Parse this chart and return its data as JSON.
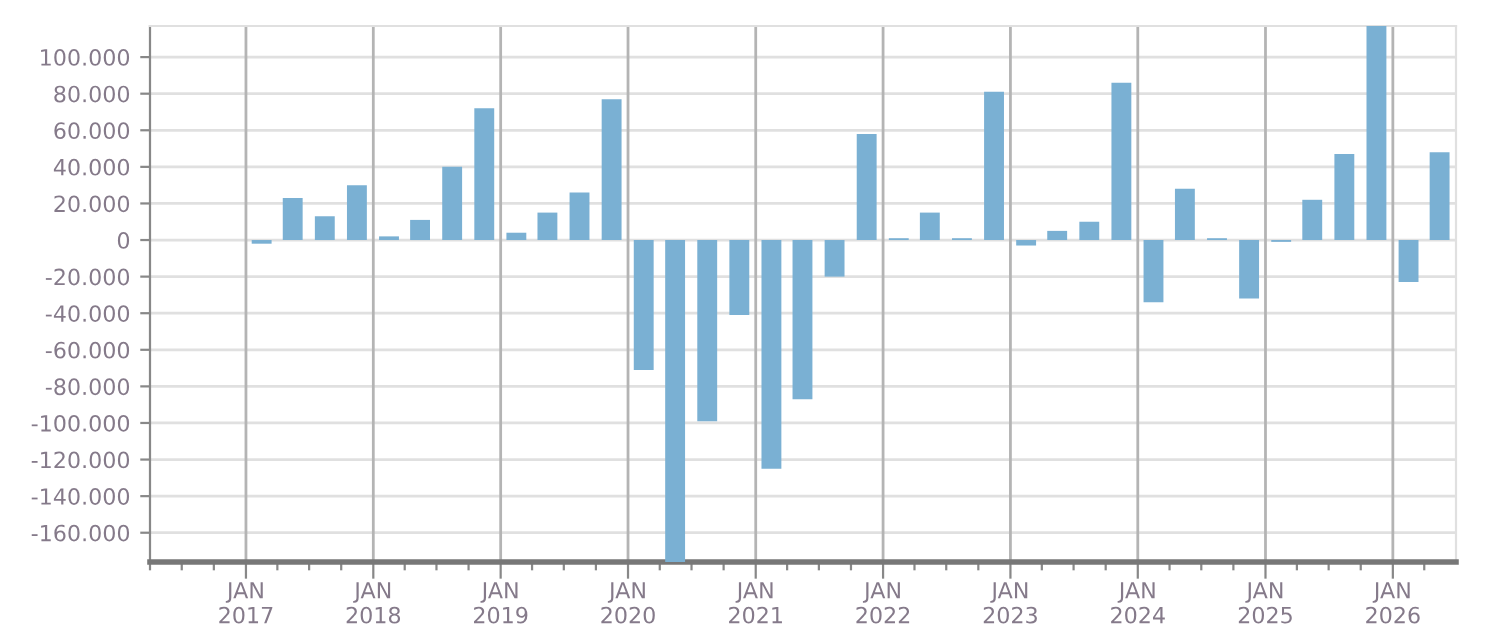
{
  "chart_data": {
    "type": "bar",
    "color": "#7ab0d3",
    "grid": true,
    "x": [
      "2017-02-15",
      "2017-05-15",
      "2017-08-15",
      "2017-11-15",
      "2018-02-15",
      "2018-05-15",
      "2018-08-15",
      "2018-11-15",
      "2019-02-15",
      "2019-05-15",
      "2019-08-15",
      "2019-11-15",
      "2020-02-15",
      "2020-05-15",
      "2020-08-15",
      "2020-11-15",
      "2021-02-15",
      "2021-05-15",
      "2021-08-15",
      "2021-11-15",
      "2022-02-15",
      "2022-05-15",
      "2022-08-15",
      "2022-11-15",
      "2023-02-15",
      "2023-05-15",
      "2023-08-15",
      "2023-11-15",
      "2024-02-15",
      "2024-05-15",
      "2024-08-15",
      "2024-11-15",
      "2025-02-15",
      "2025-05-15",
      "2025-08-15",
      "2025-11-15",
      "2026-02-15",
      "2026-05-15"
    ],
    "values": [
      -2000,
      23000,
      13000,
      30000,
      2000,
      11000,
      40000,
      72000,
      4000,
      15000,
      26000,
      77000,
      -71000,
      -176000,
      -99000,
      -41000,
      -125000,
      -87000,
      -20000,
      58000,
      1000,
      15000,
      1000,
      81000,
      -3000,
      5000,
      10000,
      86000,
      -34000,
      28000,
      1000,
      -32000,
      -1000,
      22000,
      47000,
      117000,
      -23000,
      48000
    ],
    "xlim": [
      "2016-04-01",
      "2026-07-01"
    ],
    "xticks": [
      {
        "value": "2016-04-01",
        "label": null
      },
      {
        "value": "2016-07-01",
        "label": null
      },
      {
        "value": "2016-10-01",
        "label": null
      },
      {
        "value": "2017-01-01",
        "label": "JAN\n2017"
      },
      {
        "value": "2017-04-01",
        "label": null
      },
      {
        "value": "2017-07-01",
        "label": null
      },
      {
        "value": "2017-10-01",
        "label": null
      },
      {
        "value": "2018-01-01",
        "label": "JAN\n2018"
      },
      {
        "value": "2018-04-01",
        "label": null
      },
      {
        "value": "2018-07-01",
        "label": null
      },
      {
        "value": "2018-10-01",
        "label": null
      },
      {
        "value": "2019-01-01",
        "label": "JAN\n2019"
      },
      {
        "value": "2019-04-01",
        "label": null
      },
      {
        "value": "2019-07-01",
        "label": null
      },
      {
        "value": "2019-10-01",
        "label": null
      },
      {
        "value": "2020-01-01",
        "label": "JAN\n2020"
      },
      {
        "value": "2020-04-01",
        "label": null
      },
      {
        "value": "2020-07-01",
        "label": null
      },
      {
        "value": "2020-10-01",
        "label": null
      },
      {
        "value": "2021-01-01",
        "label": "JAN\n2021"
      },
      {
        "value": "2021-04-01",
        "label": null
      },
      {
        "value": "2021-07-01",
        "label": null
      },
      {
        "value": "2021-10-01",
        "label": null
      },
      {
        "value": "2022-01-01",
        "label": "JAN\n2022"
      },
      {
        "value": "2022-04-01",
        "label": null
      },
      {
        "value": "2022-07-01",
        "label": null
      },
      {
        "value": "2022-10-01",
        "label": null
      },
      {
        "value": "2023-01-01",
        "label": "JAN\n2023"
      },
      {
        "value": "2023-04-01",
        "label": null
      },
      {
        "value": "2023-07-01",
        "label": null
      },
      {
        "value": "2023-10-01",
        "label": null
      },
      {
        "value": "2024-01-01",
        "label": "JAN\n2024"
      },
      {
        "value": "2024-04-01",
        "label": null
      },
      {
        "value": "2024-07-01",
        "label": null
      },
      {
        "value": "2024-10-01",
        "label": null
      },
      {
        "value": "2025-01-01",
        "label": "JAN\n2025"
      },
      {
        "value": "2025-04-01",
        "label": null
      },
      {
        "value": "2025-07-01",
        "label": null
      },
      {
        "value": "2025-10-01",
        "label": null
      },
      {
        "value": "2026-01-01",
        "label": "JAN\n2026"
      },
      {
        "value": "2026-04-01",
        "label": null
      }
    ],
    "ylim": [
      -176000,
      117000
    ],
    "yticks": [
      {
        "value": -160000,
        "label": "-160.000"
      },
      {
        "value": -140000,
        "label": "-140.000"
      },
      {
        "value": -120000,
        "label": "-120.000"
      },
      {
        "value": -100000,
        "label": "-100.000"
      },
      {
        "value": -80000,
        "label": "-80.000"
      },
      {
        "value": -60000,
        "label": "-60.000"
      },
      {
        "value": -40000,
        "label": "-40.000"
      },
      {
        "value": -20000,
        "label": "-20.000"
      },
      0,
      {
        "value": 20000,
        "label": "20.000"
      },
      {
        "value": 40000,
        "label": "40.000"
      },
      {
        "value": 60000,
        "label": "60.000"
      },
      {
        "value": 80000,
        "label": "80.000"
      },
      {
        "value": 100000,
        "label": "100.000"
      }
    ]
  }
}
